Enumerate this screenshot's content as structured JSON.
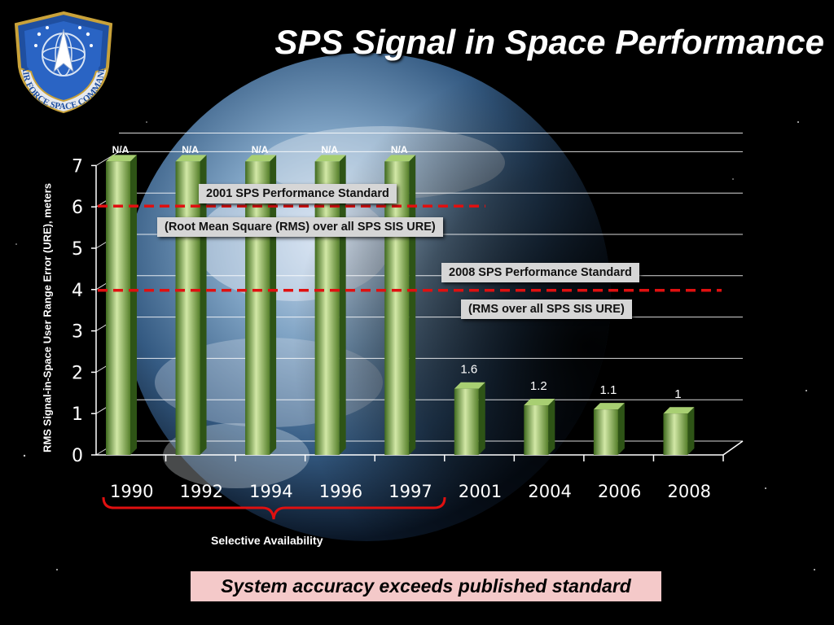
{
  "title": "SPS Signal in Space Performance",
  "logo": {
    "icon": "air-force-space-command-emblem",
    "text": "AIR FORCE SPACE COMMAND"
  },
  "chart_data": {
    "type": "bar",
    "ylabel": "RMS Signal-in-Space User Range Error (URE), meters",
    "xlabel": "",
    "ylim": [
      0,
      7
    ],
    "yticks": [
      "0",
      "1",
      "2",
      "3",
      "4",
      "5",
      "6",
      "7"
    ],
    "grid": true,
    "categories": [
      "1990",
      "1992",
      "1994",
      "1996",
      "1997",
      "2001",
      "2004",
      "2006",
      "2008"
    ],
    "values": [
      7.1,
      7.1,
      7.1,
      7.1,
      7.1,
      1.6,
      1.2,
      1.1,
      1.0
    ],
    "data_labels": [
      "N/A",
      "N/A",
      "N/A",
      "N/A",
      "N/A",
      "1.6",
      "1.2",
      "1.1",
      "1"
    ],
    "bar_color": "#6f9e3c",
    "reference_lines": [
      {
        "value": 6,
        "color": "#e01010"
      },
      {
        "value": 4,
        "color": "#e01010"
      }
    ],
    "bracket_color": "#e01010"
  },
  "annotations": {
    "std2001_title": "2001 SPS Performance Standard",
    "std2001_note": "(Root Mean Square (RMS) over all SPS SIS URE)",
    "std2008_title": "2008 SPS Performance Standard",
    "std2008_note": "(RMS over all SPS SIS URE)",
    "selective_availability": "Selective Availability"
  },
  "banner": "System accuracy exceeds published standard"
}
